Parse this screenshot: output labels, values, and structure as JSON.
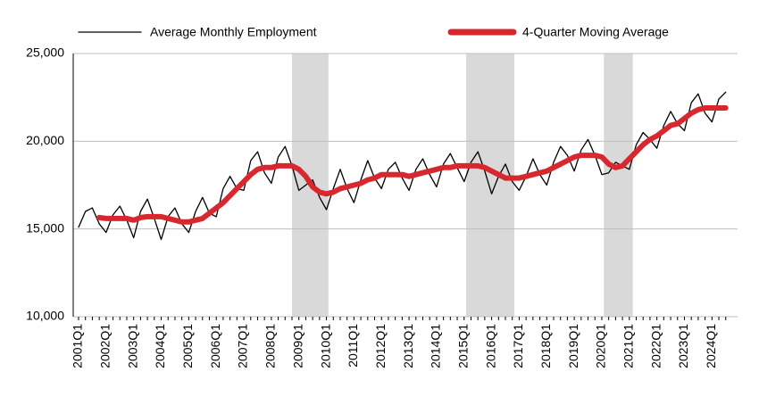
{
  "chart_data": {
    "type": "line",
    "categories": [
      "2001Q1",
      null,
      null,
      null,
      "2002Q1",
      null,
      null,
      null,
      "2003Q1",
      null,
      null,
      null,
      "2004Q1",
      null,
      null,
      null,
      "2005Q1",
      null,
      null,
      null,
      "2006Q1",
      null,
      null,
      null,
      "2007Q1",
      null,
      null,
      null,
      "2008Q1",
      null,
      null,
      null,
      "2009Q1",
      null,
      null,
      null,
      "2010Q1",
      null,
      null,
      null,
      "2011Q1",
      null,
      null,
      null,
      "2012Q1",
      null,
      null,
      null,
      "2013Q1",
      null,
      null,
      null,
      "2014Q1",
      null,
      null,
      null,
      "2015Q1",
      null,
      null,
      null,
      "2016Q1",
      null,
      null,
      null,
      "2017Q1",
      null,
      null,
      null,
      "2018Q1",
      null,
      null,
      null,
      "2019Q1",
      null,
      null,
      null,
      "2020Q1",
      null,
      null,
      null,
      "2021Q1",
      null,
      null,
      null,
      "2022Q1",
      null,
      null,
      null,
      "2023Q1",
      null,
      null,
      null,
      "2024Q1",
      null,
      null
    ],
    "series": [
      {
        "name": "Average Monthly Employment",
        "color": "#000000",
        "values": [
          15100,
          16000,
          16200,
          15300,
          14800,
          15800,
          16300,
          15500,
          14500,
          16000,
          16700,
          15600,
          14400,
          15700,
          16200,
          15300,
          14800,
          16000,
          16800,
          15900,
          15700,
          17300,
          18000,
          17300,
          17200,
          18900,
          19400,
          18200,
          17600,
          19100,
          19700,
          18600,
          17200,
          17500,
          17800,
          16800,
          16100,
          17300,
          18400,
          17300,
          16500,
          17800,
          18900,
          17900,
          17300,
          18400,
          18800,
          17900,
          17200,
          18400,
          19000,
          18100,
          17400,
          18700,
          19300,
          18500,
          17700,
          18800,
          19400,
          18300,
          17000,
          18000,
          18700,
          17700,
          17200,
          18000,
          19000,
          18100,
          17500,
          18800,
          19700,
          19200,
          18300,
          19500,
          20100,
          19200,
          18100,
          18200,
          18800,
          18600,
          18400,
          19800,
          20500,
          20100,
          19600,
          20900,
          21700,
          21000,
          20600,
          22200,
          22700,
          21600,
          21100,
          22400,
          22800
        ]
      },
      {
        "name": "4-Quarter Moving Average",
        "color": "#d7282f",
        "values": [
          null,
          null,
          null,
          15650,
          15600,
          15600,
          15600,
          15600,
          15500,
          15650,
          15700,
          15700,
          15700,
          15600,
          15500,
          15400,
          15400,
          15500,
          15600,
          15900,
          16200,
          16500,
          16900,
          17300,
          17700,
          18100,
          18400,
          18500,
          18500,
          18600,
          18600,
          18600,
          18400,
          18000,
          17400,
          17100,
          17000,
          17100,
          17300,
          17400,
          17500,
          17600,
          17800,
          17900,
          18100,
          18100,
          18100,
          18100,
          18000,
          18100,
          18200,
          18300,
          18400,
          18500,
          18500,
          18600,
          18600,
          18600,
          18600,
          18500,
          18300,
          18100,
          17900,
          17900,
          17900,
          18000,
          18100,
          18200,
          18300,
          18500,
          18700,
          18900,
          19100,
          19200,
          19200,
          19200,
          19100,
          18700,
          18500,
          18600,
          19000,
          19400,
          19800,
          20100,
          20300,
          20600,
          20900,
          21000,
          21300,
          21600,
          21800,
          21900,
          21900,
          21900,
          21900
        ]
      }
    ],
    "shaded": [
      [
        31,
        36.3
      ],
      [
        56.3,
        63.3
      ],
      [
        76.3,
        80.5
      ]
    ],
    "shade_color": "#d9d9d9",
    "ylim": [
      10000,
      25000
    ],
    "yticks": [
      {
        "value": 10000,
        "label": "10,000"
      },
      {
        "value": 15000,
        "label": "15,000"
      },
      {
        "value": 20000,
        "label": "20,000"
      },
      {
        "value": 25000,
        "label": "25,000"
      }
    ],
    "grid": true
  }
}
